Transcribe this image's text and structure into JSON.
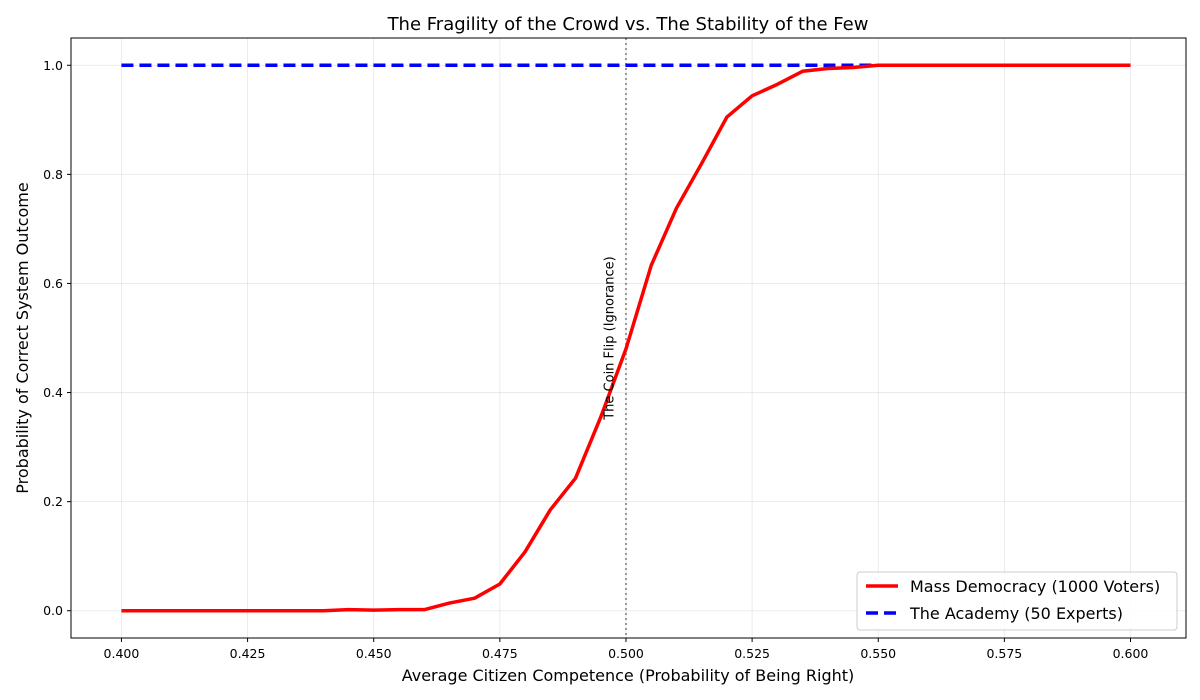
{
  "chart_data": {
    "type": "line",
    "title": "The Fragility of the Crowd vs. The Stability of the Few",
    "xlabel": "Average Citizen Competence (Probability of Being Right)",
    "ylabel": "Probability of Correct System Outcome",
    "xlim": [
      0.39,
      0.611
    ],
    "ylim": [
      -0.05,
      1.05
    ],
    "xticks": [
      0.4,
      0.425,
      0.45,
      0.475,
      0.5,
      0.525,
      0.55,
      0.575,
      0.6
    ],
    "xtick_labels": [
      "0.400",
      "0.425",
      "0.450",
      "0.475",
      "0.500",
      "0.525",
      "0.550",
      "0.575",
      "0.600"
    ],
    "yticks": [
      0.0,
      0.2,
      0.4,
      0.6,
      0.8,
      1.0
    ],
    "ytick_labels": [
      "0.0",
      "0.2",
      "0.4",
      "0.6",
      "0.8",
      "1.0"
    ],
    "grid": true,
    "legend_position": "bottom-right",
    "series": [
      {
        "name": "Mass Democracy (1000 Voters)",
        "color": "#ff0000",
        "style": "solid",
        "x": [
          0.4,
          0.405,
          0.41,
          0.415,
          0.42,
          0.425,
          0.43,
          0.435,
          0.44,
          0.445,
          0.45,
          0.455,
          0.46,
          0.465,
          0.47,
          0.475,
          0.48,
          0.485,
          0.49,
          0.495,
          0.5,
          0.505,
          0.51,
          0.515,
          0.52,
          0.525,
          0.53,
          0.535,
          0.54,
          0.545,
          0.55,
          0.555,
          0.56,
          0.565,
          0.57,
          0.575,
          0.58,
          0.585,
          0.59,
          0.595,
          0.6
        ],
        "values": [
          0.0,
          0.0,
          0.0,
          0.0,
          0.0,
          0.0,
          0.0,
          0.0,
          0.0,
          0.002,
          0.001,
          0.002,
          0.002,
          0.014,
          0.023,
          0.049,
          0.108,
          0.185,
          0.243,
          0.355,
          0.48,
          0.633,
          0.738,
          0.82,
          0.905,
          0.944,
          0.965,
          0.989,
          0.994,
          0.996,
          1.0,
          1.0,
          1.0,
          1.0,
          1.0,
          1.0,
          1.0,
          1.0,
          1.0,
          1.0,
          1.0
        ]
      },
      {
        "name": "The Academy (50 Experts)",
        "color": "#0000ff",
        "style": "dashed",
        "x": [
          0.4,
          0.6
        ],
        "values": [
          1.0,
          1.0
        ]
      }
    ],
    "annotations": [
      {
        "text": "The Coin Flip (Ignorance)",
        "x": 0.5,
        "orientation": "vertical",
        "line_style": "dotted",
        "line_color": "#808080"
      }
    ]
  }
}
